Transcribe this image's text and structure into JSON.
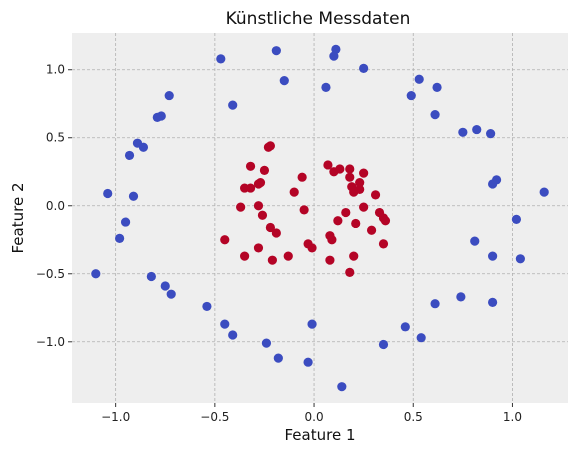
{
  "chart_data": {
    "type": "scatter",
    "title": "Künstliche Messdaten",
    "xlabel": "Feature 1",
    "ylabel": "Feature 2",
    "xlim": [
      -1.22,
      1.28
    ],
    "ylim": [
      -1.45,
      1.27
    ],
    "xticks": [
      -1.0,
      -0.5,
      0.0,
      0.5,
      1.0
    ],
    "xtick_labels": [
      "−1.0",
      "−0.5",
      "0.0",
      "0.5",
      "1.0"
    ],
    "yticks": [
      -1.0,
      -0.5,
      0.0,
      0.5,
      1.0
    ],
    "ytick_labels": [
      "−1.0",
      "−0.5",
      "0.0",
      "0.5",
      "1.0"
    ],
    "grid": true,
    "style": "bmh",
    "colors": {
      "outer": "#3b4cc0",
      "inner": "#b40426",
      "plot_bg": "#eeeeee",
      "grid": "#b0b0b0"
    },
    "series": [
      {
        "class": "outer",
        "color": "#3b4cc0",
        "points": [
          [
            -0.47,
            1.08
          ],
          [
            -0.19,
            1.14
          ],
          [
            0.11,
            1.15
          ],
          [
            0.1,
            1.1
          ],
          [
            0.25,
            1.01
          ],
          [
            -0.15,
            0.92
          ],
          [
            0.06,
            0.87
          ],
          [
            0.53,
            0.93
          ],
          [
            0.62,
            0.87
          ],
          [
            0.49,
            0.81
          ],
          [
            -0.73,
            0.81
          ],
          [
            -0.41,
            0.74
          ],
          [
            -0.77,
            0.66
          ],
          [
            -0.79,
            0.65
          ],
          [
            0.61,
            0.67
          ],
          [
            -0.89,
            0.46
          ],
          [
            -0.86,
            0.43
          ],
          [
            -0.93,
            0.37
          ],
          [
            0.75,
            0.54
          ],
          [
            0.82,
            0.56
          ],
          [
            0.89,
            0.53
          ],
          [
            0.92,
            0.19
          ],
          [
            0.9,
            0.16
          ],
          [
            1.16,
            0.1
          ],
          [
            -1.04,
            0.09
          ],
          [
            -0.91,
            0.07
          ],
          [
            1.02,
            -0.1
          ],
          [
            -0.95,
            -0.12
          ],
          [
            -0.98,
            -0.24
          ],
          [
            0.81,
            -0.26
          ],
          [
            0.9,
            -0.37
          ],
          [
            1.04,
            -0.39
          ],
          [
            -1.1,
            -0.5
          ],
          [
            -0.82,
            -0.52
          ],
          [
            -0.75,
            -0.59
          ],
          [
            -0.72,
            -0.65
          ],
          [
            0.74,
            -0.67
          ],
          [
            0.9,
            -0.71
          ],
          [
            0.61,
            -0.72
          ],
          [
            -0.54,
            -0.74
          ],
          [
            -0.45,
            -0.87
          ],
          [
            -0.41,
            -0.95
          ],
          [
            -0.01,
            -0.87
          ],
          [
            0.46,
            -0.89
          ],
          [
            0.54,
            -0.97
          ],
          [
            -0.24,
            -1.01
          ],
          [
            0.35,
            -1.02
          ],
          [
            -0.18,
            -1.12
          ],
          [
            -0.03,
            -1.15
          ],
          [
            0.14,
            -1.33
          ]
        ]
      },
      {
        "class": "inner",
        "color": "#b40426",
        "points": [
          [
            -0.22,
            0.44
          ],
          [
            -0.23,
            0.43
          ],
          [
            0.07,
            0.3
          ],
          [
            -0.32,
            0.29
          ],
          [
            -0.25,
            0.26
          ],
          [
            0.13,
            0.27
          ],
          [
            0.18,
            0.27
          ],
          [
            0.1,
            0.25
          ],
          [
            0.25,
            0.24
          ],
          [
            -0.06,
            0.21
          ],
          [
            0.18,
            0.21
          ],
          [
            -0.27,
            0.17
          ],
          [
            -0.28,
            0.16
          ],
          [
            0.23,
            0.17
          ],
          [
            -0.35,
            0.13
          ],
          [
            -0.32,
            0.13
          ],
          [
            0.19,
            0.14
          ],
          [
            0.23,
            0.12
          ],
          [
            0.2,
            0.1
          ],
          [
            -0.1,
            0.1
          ],
          [
            0.31,
            0.08
          ],
          [
            -0.37,
            -0.01
          ],
          [
            -0.28,
            0.0
          ],
          [
            0.25,
            -0.01
          ],
          [
            -0.05,
            -0.03
          ],
          [
            0.33,
            -0.05
          ],
          [
            0.16,
            -0.05
          ],
          [
            -0.26,
            -0.07
          ],
          [
            0.35,
            -0.09
          ],
          [
            0.36,
            -0.11
          ],
          [
            0.12,
            -0.11
          ],
          [
            0.21,
            -0.13
          ],
          [
            -0.22,
            -0.16
          ],
          [
            -0.19,
            -0.2
          ],
          [
            0.29,
            -0.18
          ],
          [
            -0.45,
            -0.25
          ],
          [
            0.08,
            -0.22
          ],
          [
            0.09,
            -0.25
          ],
          [
            -0.03,
            -0.28
          ],
          [
            -0.01,
            -0.31
          ],
          [
            -0.28,
            -0.31
          ],
          [
            0.35,
            -0.28
          ],
          [
            -0.35,
            -0.37
          ],
          [
            -0.13,
            -0.37
          ],
          [
            -0.21,
            -0.4
          ],
          [
            0.08,
            -0.4
          ],
          [
            0.2,
            -0.37
          ],
          [
            0.18,
            -0.49
          ]
        ]
      }
    ]
  }
}
